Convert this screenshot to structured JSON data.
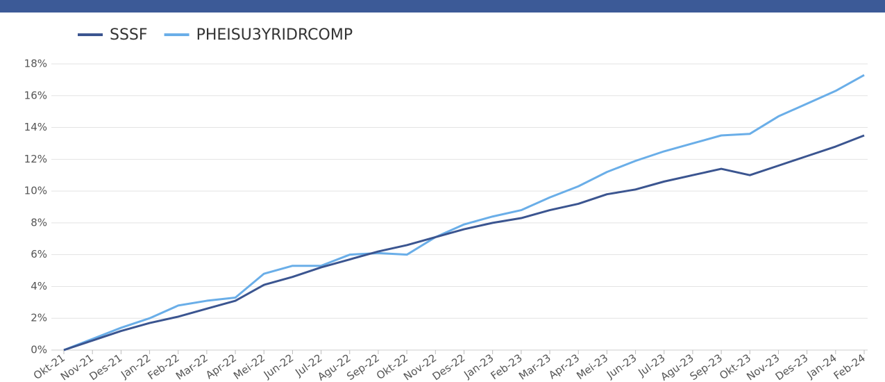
{
  "chart_data": {
    "type": "line",
    "categories": [
      "Okt-21",
      "Nov-21",
      "Des-21",
      "Jan-22",
      "Feb-22",
      "Mar-22",
      "Apr-22",
      "Mei-22",
      "Jun-22",
      "Jul-22",
      "Agu-22",
      "Sep-22",
      "Okt-22",
      "Nov-22",
      "Des-22",
      "Jan-23",
      "Feb-23",
      "Mar-23",
      "Apr-23",
      "Mei-23",
      "Jun-23",
      "Jul-23",
      "Agu-23",
      "Sep-23",
      "Okt-23",
      "Nov-23",
      "Des-23",
      "Jan-24",
      "Feb-24"
    ],
    "series": [
      {
        "name": "SSSF",
        "color": "#3b5590",
        "values": [
          0,
          0.6,
          1.2,
          1.7,
          2.1,
          2.6,
          3.1,
          4.1,
          4.6,
          5.2,
          5.7,
          6.2,
          6.6,
          7.1,
          7.6,
          8.0,
          8.3,
          8.8,
          9.2,
          9.8,
          10.1,
          10.6,
          11.0,
          11.4,
          11.0,
          11.6,
          12.2,
          12.8,
          13.5
        ]
      },
      {
        "name": "PHEISU3YRIDRCOMP",
        "color": "#6aaee8",
        "values": [
          0,
          0.7,
          1.4,
          2.0,
          2.8,
          3.1,
          3.3,
          4.8,
          5.3,
          5.3,
          6.0,
          6.1,
          6.0,
          7.1,
          7.9,
          8.4,
          8.8,
          9.6,
          10.3,
          11.2,
          11.9,
          12.5,
          13.0,
          13.5,
          13.6,
          14.7,
          15.5,
          16.3,
          17.3
        ]
      }
    ],
    "ylim": [
      0,
      18
    ],
    "yticks": [
      {
        "value": 0,
        "label": "0%"
      },
      {
        "value": 2,
        "label": "2%"
      },
      {
        "value": 4,
        "label": "4%"
      },
      {
        "value": 6,
        "label": "6%"
      },
      {
        "value": 8,
        "label": "8%"
      },
      {
        "value": 10,
        "label": "10%"
      },
      {
        "value": 12,
        "label": "12%"
      },
      {
        "value": 14,
        "label": "14%"
      },
      {
        "value": 16,
        "label": "16%"
      },
      {
        "value": 18,
        "label": "18%"
      }
    ],
    "grid": true
  }
}
